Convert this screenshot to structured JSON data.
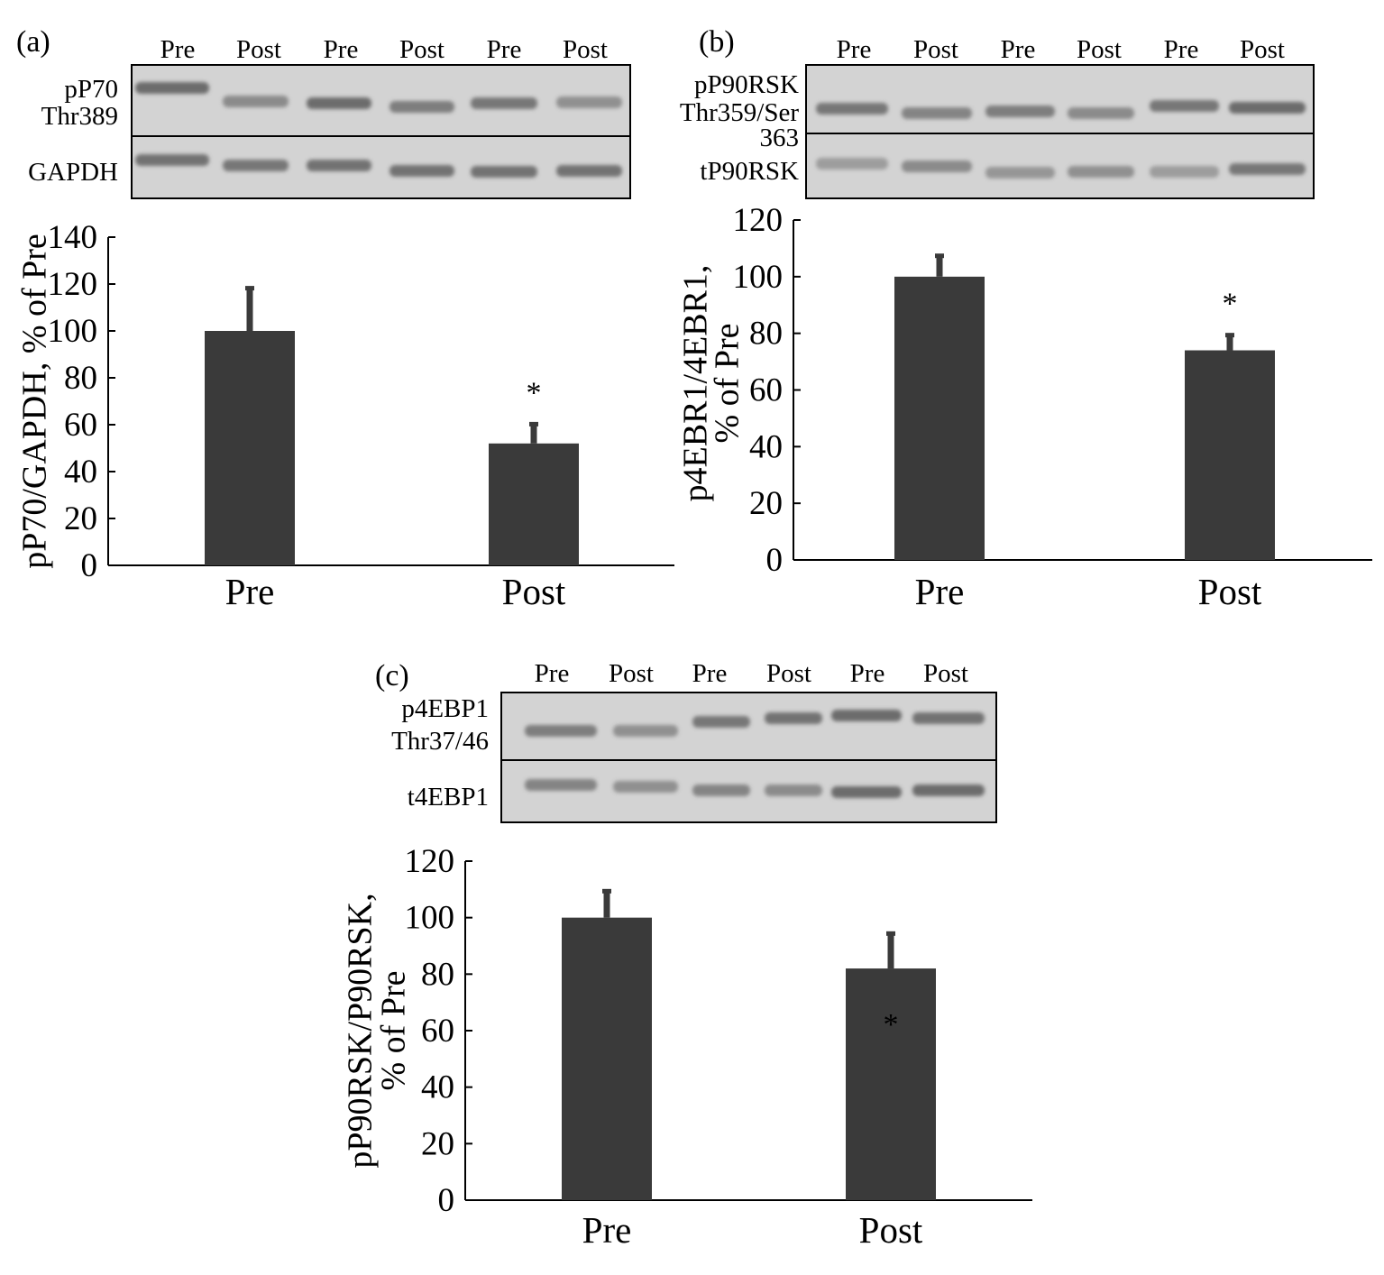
{
  "colors": {
    "bar": "#3a3a3a",
    "axis": "#000000",
    "blot_bg": "#d3d3d3",
    "band": "#5a5a5a"
  },
  "chart_data": [
    {
      "type": "bar",
      "panel": "(a)",
      "blot": {
        "lanes": [
          "Pre",
          "Post",
          "Pre",
          "Post",
          "Pre",
          "Post"
        ],
        "rows": [
          {
            "label_lines": [
              "pP70",
              "Thr389"
            ],
            "intensity": [
              0.85,
              0.6,
              0.85,
              0.7,
              0.75,
              0.55
            ]
          },
          {
            "label_lines": [
              "GAPDH"
            ],
            "intensity": [
              0.8,
              0.75,
              0.8,
              0.8,
              0.8,
              0.8
            ]
          }
        ]
      },
      "categories": [
        "Pre",
        "Post"
      ],
      "values": [
        100,
        52
      ],
      "errors": [
        19,
        9
      ],
      "significance": [
        "",
        "*"
      ],
      "ylabel_lines": [
        "pP70/GAPDH, % of Pre"
      ],
      "ylim": [
        0,
        140
      ],
      "yticks": [
        0,
        20,
        40,
        60,
        80,
        100,
        120,
        140
      ]
    },
    {
      "type": "bar",
      "panel": "(b)",
      "blot": {
        "lanes": [
          "Pre",
          "Post",
          "Pre",
          "Post",
          "Pre",
          "Post"
        ],
        "rows": [
          {
            "label_lines": [
              "pP90RSK",
              "Thr359/Ser",
              "363"
            ],
            "intensity": [
              0.75,
              0.65,
              0.7,
              0.6,
              0.75,
              0.85
            ]
          },
          {
            "label_lines": [
              "tP90RSK"
            ],
            "intensity": [
              0.45,
              0.6,
              0.5,
              0.55,
              0.45,
              0.75
            ]
          }
        ]
      },
      "categories": [
        "Pre",
        "Post"
      ],
      "values": [
        100,
        74
      ],
      "errors": [
        8,
        6
      ],
      "significance": [
        "",
        "*"
      ],
      "ylabel_lines": [
        "p4EBR1/4EBR1,",
        "% of Pre"
      ],
      "ylim": [
        0,
        120
      ],
      "yticks": [
        0,
        20,
        40,
        60,
        80,
        100,
        120
      ]
    },
    {
      "type": "bar",
      "panel": "(c)",
      "blot": {
        "lanes": [
          "Pre",
          "Post",
          "Pre",
          "Post",
          "Pre",
          "Post"
        ],
        "rows": [
          {
            "label_lines": [
              "p4EBP1",
              "Thr37/46"
            ],
            "intensity": [
              0.7,
              0.55,
              0.75,
              0.8,
              0.85,
              0.8
            ]
          },
          {
            "label_lines": [
              "t4EBP1"
            ],
            "intensity": [
              0.65,
              0.55,
              0.65,
              0.6,
              0.85,
              0.85
            ]
          }
        ]
      },
      "categories": [
        "Pre",
        "Post"
      ],
      "values": [
        100,
        82
      ],
      "errors": [
        10,
        13
      ],
      "significance": [
        "",
        "*"
      ],
      "ylabel_lines": [
        "pP90RSK/P90RSK,",
        "% of Pre"
      ],
      "ylim": [
        0,
        120
      ],
      "yticks": [
        0,
        20,
        40,
        60,
        80,
        100,
        120
      ]
    }
  ]
}
